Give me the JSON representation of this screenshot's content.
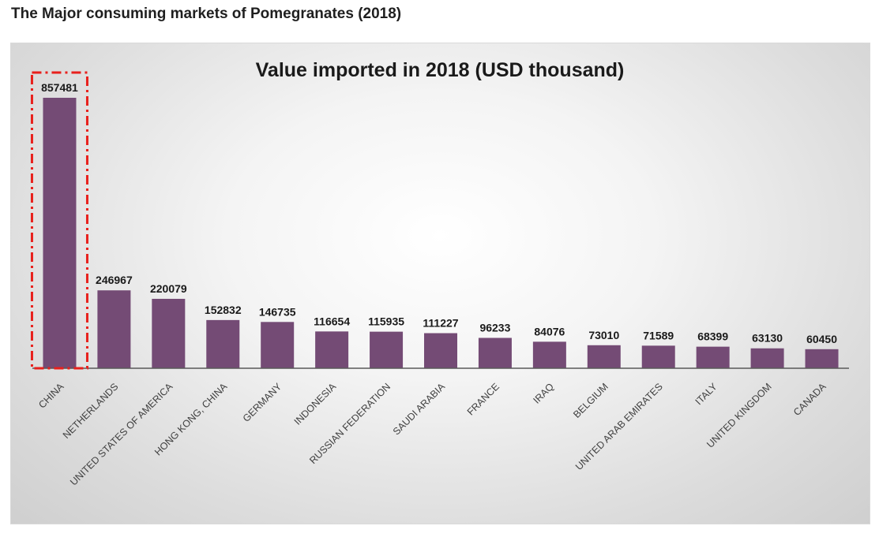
{
  "heading": "The Major consuming markets of Pomegranates (2018)",
  "colors": {
    "bar": "#744b75",
    "highlight_box": "#e8201c",
    "axis": "#595959",
    "text": "#1a1a1a"
  },
  "chart_data": {
    "type": "bar",
    "title": "Value imported in 2018 (USD thousand)",
    "xlabel": "",
    "ylabel": "",
    "ylim": [
      0,
      950000
    ],
    "grid": false,
    "legend": "none",
    "highlighted_category": "CHINA",
    "categories": [
      "CHINA",
      "NETHERLANDS",
      "UNITED STATES OF AMERICA",
      "HONG KONG, CHINA",
      "GERMANY",
      "INDONESIA",
      "RUSSIAN FEDERATION",
      "SAUDI ARABIA",
      "FRANCE",
      "IRAQ",
      "BELGIUM",
      "UNITED ARAB EMIRATES",
      "ITALY",
      "UNITED KINGDOM",
      "CANADA"
    ],
    "values": [
      857481,
      246967,
      220079,
      152832,
      146735,
      116654,
      115935,
      111227,
      96233,
      84076,
      73010,
      71589,
      68399,
      63130,
      60450
    ],
    "data_labels": [
      "857481",
      "246967",
      "220079",
      "152832",
      "146735",
      "116654",
      "115935",
      "111227",
      "96233",
      "84076",
      "73010",
      "71589",
      "68399",
      "63130",
      "60450"
    ]
  }
}
